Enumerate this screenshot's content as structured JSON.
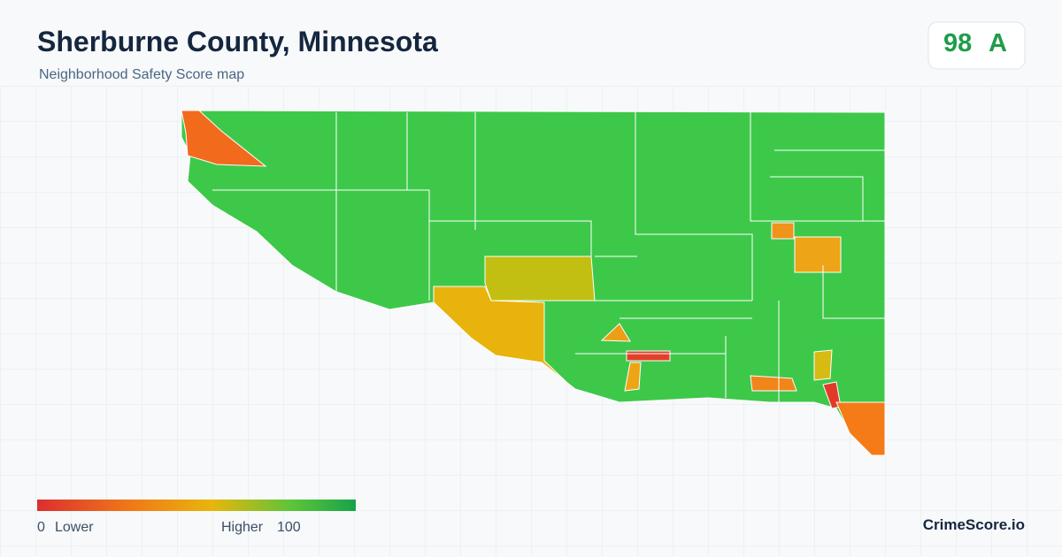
{
  "header": {
    "title": "Sherburne County, Minnesota",
    "subtitle": "Neighborhood Safety Score map"
  },
  "score": {
    "value": 98,
    "grade": "A"
  },
  "legend": {
    "min": 0,
    "min_label": "Lower",
    "max_label": "Higher",
    "max": 100
  },
  "brand": "CrimeScore.io"
}
